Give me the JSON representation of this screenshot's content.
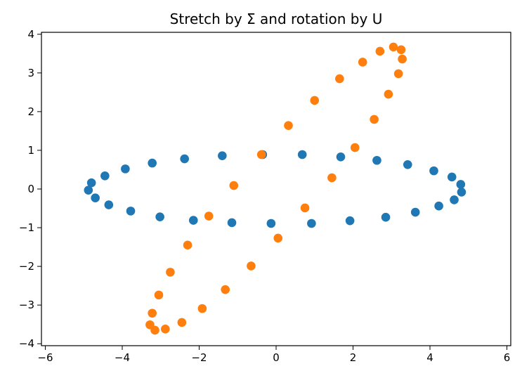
{
  "chart_data": {
    "type": "scatter",
    "title": "Stretch by Σ and rotation by U",
    "xlabel": "",
    "ylabel": "",
    "xlim": [
      -6.1,
      6.1
    ],
    "ylim": [
      -4.05,
      4.05
    ],
    "xticks": [
      -6,
      -4,
      -2,
      0,
      2,
      4,
      6
    ],
    "yticks": [
      -4,
      -3,
      -2,
      -1,
      0,
      1,
      2,
      3,
      4
    ],
    "grid": false,
    "series": [
      {
        "color": "#1f77b4",
        "points": [
          [
            4.82,
            -0.08
          ],
          [
            4.8,
            0.12
          ],
          [
            4.57,
            0.31
          ],
          [
            4.1,
            0.47
          ],
          [
            3.42,
            0.63
          ],
          [
            2.62,
            0.74
          ],
          [
            1.68,
            0.83
          ],
          [
            0.68,
            0.89
          ],
          [
            -0.35,
            0.89
          ],
          [
            -1.4,
            0.86
          ],
          [
            -2.38,
            0.78
          ],
          [
            -3.22,
            0.67
          ],
          [
            -3.92,
            0.52
          ],
          [
            -4.45,
            0.34
          ],
          [
            -4.8,
            0.16
          ],
          [
            -4.88,
            -0.03
          ],
          [
            -4.7,
            -0.23
          ],
          [
            -4.35,
            -0.41
          ],
          [
            -3.78,
            -0.57
          ],
          [
            -3.02,
            -0.72
          ],
          [
            -2.15,
            -0.81
          ],
          [
            -1.15,
            -0.87
          ],
          [
            -0.13,
            -0.89
          ],
          [
            0.92,
            -0.89
          ],
          [
            1.92,
            -0.82
          ],
          [
            2.85,
            -0.73
          ],
          [
            3.62,
            -0.6
          ],
          [
            4.23,
            -0.44
          ],
          [
            4.63,
            -0.28
          ]
        ]
      },
      {
        "color": "#ff7f0e",
        "points": [
          [
            2.05,
            1.07
          ],
          [
            1.45,
            0.29
          ],
          [
            0.75,
            -0.49
          ],
          [
            0.05,
            -1.27
          ],
          [
            -0.65,
            -1.99
          ],
          [
            -1.32,
            -2.6
          ],
          [
            -1.92,
            -3.09
          ],
          [
            -2.45,
            -3.45
          ],
          [
            -2.88,
            -3.62
          ],
          [
            -3.15,
            -3.65
          ],
          [
            -3.28,
            -3.51
          ],
          [
            -3.22,
            -3.21
          ],
          [
            -3.05,
            -2.74
          ],
          [
            -2.75,
            -2.15
          ],
          [
            -2.3,
            -1.45
          ],
          [
            -1.75,
            -0.7
          ],
          [
            -1.1,
            0.09
          ],
          [
            -0.38,
            0.89
          ],
          [
            0.32,
            1.64
          ],
          [
            1.0,
            2.29
          ],
          [
            1.65,
            2.85
          ],
          [
            2.25,
            3.28
          ],
          [
            2.7,
            3.56
          ],
          [
            3.05,
            3.67
          ],
          [
            3.25,
            3.6
          ],
          [
            3.28,
            3.36
          ],
          [
            3.18,
            2.98
          ],
          [
            2.92,
            2.45
          ],
          [
            2.55,
            1.8
          ]
        ]
      }
    ]
  }
}
